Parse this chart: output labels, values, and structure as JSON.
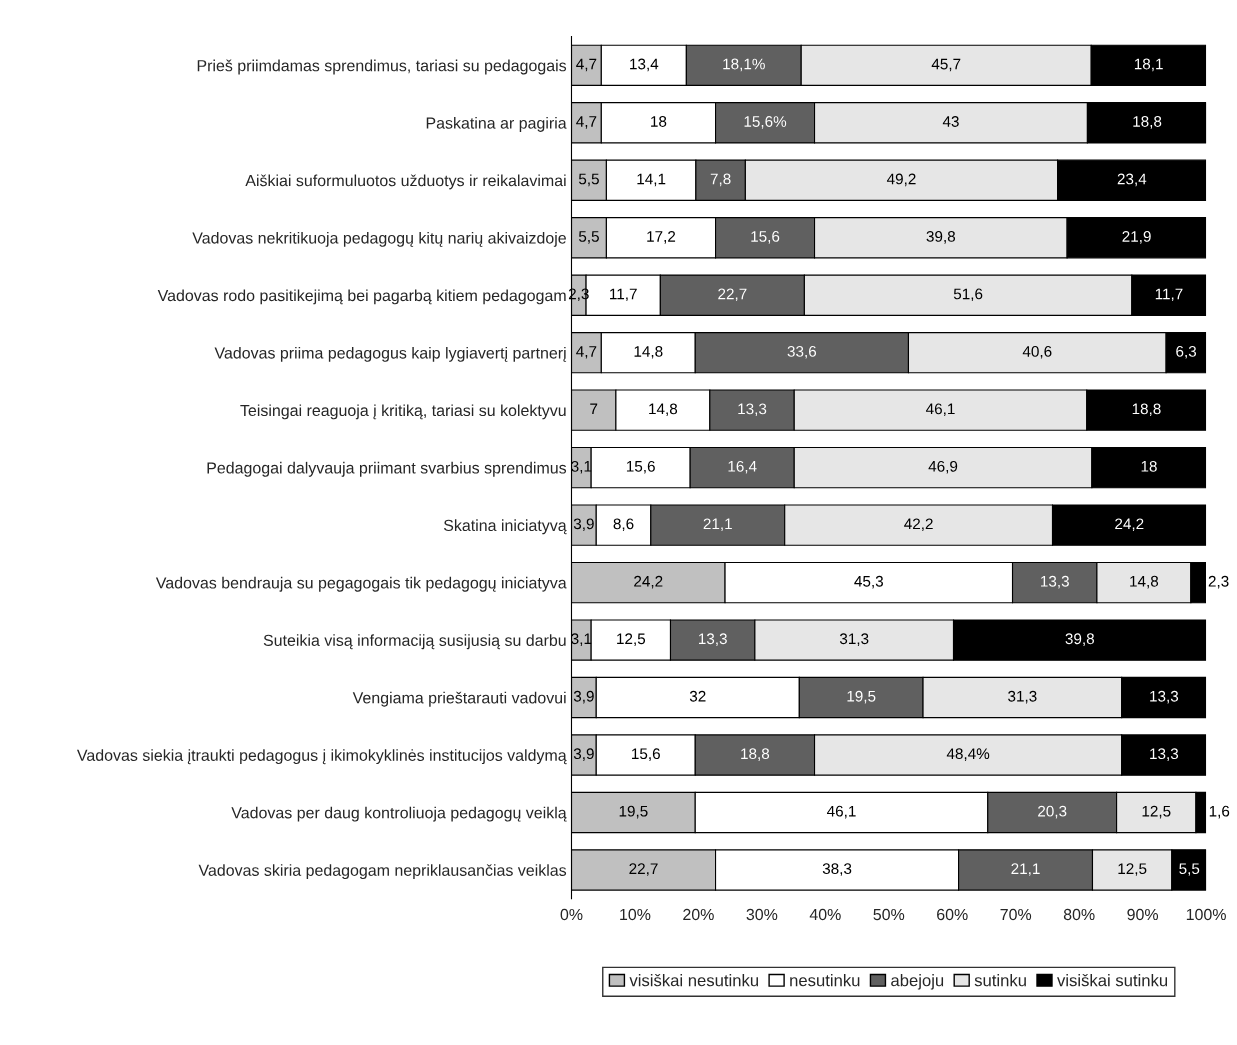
{
  "chart_data": {
    "type": "bar",
    "orientation": "horizontal",
    "stacked": true,
    "categories": [
      "Prieš priimdamas sprendimus, tariasi su pedagogais",
      "Paskatina ar pagiria",
      "Aiškiai suformuluotos užduotys ir reikalavimai",
      "Vadovas nekritikuoja pedagogų kitų narių akivaizdoje",
      "Vadovas rodo pasitikejimą bei pagarbą kitiem pedagogam",
      "Vadovas priima pedagogus kaip lygiavertį partnerį",
      "Teisingai reaguoja į kritiką, tariasi su kolektyvu",
      "Pedagogai dalyvauja priimant svarbius sprendimus",
      "Skatina iniciatyvą",
      "Vadovas bendrauja su pegagogais tik pedagogų iniciatyva",
      "Suteikia visą informaciją susijusią su darbu",
      "Vengiama prieštarauti vadovui",
      "Vadovas siekia įtraukti pedagogus į ikimokyklinės institucijos valdymą",
      "Vadovas per daug kontroliuoja pedagogų veiklą",
      "Vadovas skiria pedagogam nepriklausančias veiklas"
    ],
    "series": [
      {
        "name": "visiškai nesutinku",
        "color": "#c0c0c0",
        "values": [
          4.7,
          4.7,
          5.5,
          5.5,
          2.3,
          4.7,
          7,
          3.1,
          3.9,
          24.2,
          3.1,
          3.9,
          3.9,
          19.5,
          22.7
        ],
        "value_labels": [
          "4,7",
          "4,7",
          "5,5",
          "5,5",
          "2,3",
          "4,7",
          "7",
          "3,1",
          "3,9",
          "24,2",
          "3,1",
          "3,9",
          "3,9",
          "19,5",
          "22,7"
        ]
      },
      {
        "name": "nesutinku",
        "color": "#ffffff",
        "values": [
          13.4,
          18,
          14.1,
          17.2,
          11.7,
          14.8,
          14.8,
          15.6,
          8.6,
          45.3,
          12.5,
          32,
          15.6,
          46.1,
          38.3
        ],
        "value_labels": [
          "13,4",
          "18",
          "14,1",
          "17,2",
          "11,7",
          "14,8",
          "14,8",
          "15,6",
          "8,6",
          "45,3",
          "12,5",
          "32",
          "15,6",
          "46,1",
          "38,3"
        ]
      },
      {
        "name": "abejoju",
        "color": "#606060",
        "values": [
          18.1,
          15.6,
          7.8,
          15.6,
          22.7,
          33.6,
          13.3,
          16.4,
          21.1,
          13.3,
          13.3,
          19.5,
          18.8,
          20.3,
          21.1
        ],
        "value_labels": [
          "18,1%",
          "15,6%",
          "7,8",
          "15,6",
          "22,7",
          "33,6",
          "13,3",
          "16,4",
          "21,1",
          "13,3",
          "13,3",
          "19,5",
          "18,8",
          "20,3",
          "21,1"
        ]
      },
      {
        "name": "sutinku",
        "color": "#e6e6e6",
        "values": [
          45.7,
          43,
          49.2,
          39.8,
          51.6,
          40.6,
          46.1,
          46.9,
          42.2,
          14.8,
          31.3,
          31.3,
          48.4,
          12.5,
          12.5
        ],
        "value_labels": [
          "45,7",
          "43",
          "49,2",
          "39,8",
          "51,6",
          "40,6",
          "46,1",
          "46,9",
          "42,2",
          "14,8",
          "31,3",
          "31,3",
          "48,4%",
          "12,5",
          "12,5"
        ]
      },
      {
        "name": "visiškai sutinku",
        "color": "#000000",
        "values": [
          18.1,
          18.8,
          23.4,
          21.9,
          11.7,
          6.3,
          18.8,
          18,
          24.2,
          2.3,
          39.8,
          13.3,
          13.3,
          1.6,
          5.5
        ],
        "value_labels": [
          "18,1",
          "18,8",
          "23,4",
          "21,9",
          "11,7",
          "6,3",
          "18,8",
          "18",
          "24,2",
          "2,3",
          "39,8",
          "13,3",
          "13,3",
          "1,6",
          "5,5"
        ]
      }
    ],
    "xlim": [
      0,
      100
    ],
    "xticks": [
      {
        "value": 0,
        "label": "0%"
      },
      {
        "value": 10,
        "label": "10%"
      },
      {
        "value": 20,
        "label": "20%"
      },
      {
        "value": 30,
        "label": "30%"
      },
      {
        "value": 40,
        "label": "40%"
      },
      {
        "value": 50,
        "label": "50%"
      },
      {
        "value": 60,
        "label": "60%"
      },
      {
        "value": 70,
        "label": "70%"
      },
      {
        "value": 80,
        "label": "80%"
      },
      {
        "value": 90,
        "label": "90%"
      },
      {
        "value": 100,
        "label": "100%"
      }
    ],
    "grid": false,
    "legend": "bottom"
  }
}
